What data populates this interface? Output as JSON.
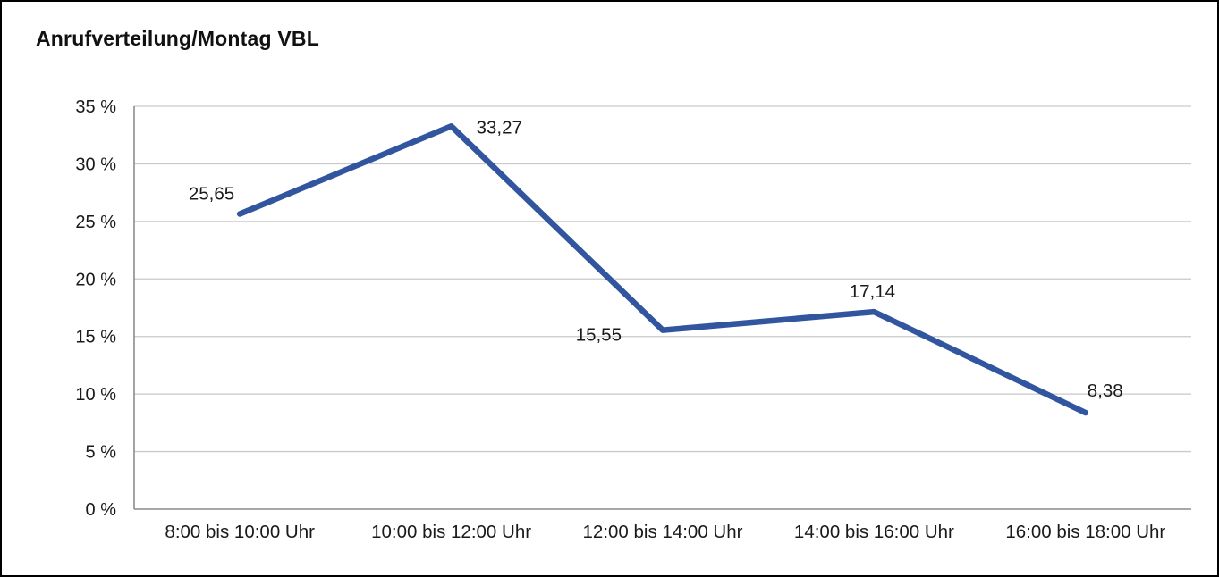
{
  "page": {
    "title": "Anrufverteilung/Montag VBL"
  },
  "chart_data": {
    "type": "line",
    "title": "Anrufverteilung/Montag VBL",
    "categories": [
      "8:00 bis 10:00 Uhr",
      "10:00 bis 12:00 Uhr",
      "12:00 bis 14:00 Uhr",
      "14:00 bis 16:00 Uhr",
      "16:00 bis 18:00 Uhr"
    ],
    "values": [
      25.65,
      33.27,
      15.55,
      17.14,
      8.38
    ],
    "value_labels": [
      "25,65",
      "33,27",
      "15,55",
      "17,14",
      "8,38"
    ],
    "xlabel": "",
    "ylabel": "",
    "ylim": [
      0,
      35
    ],
    "ytick_step": 5,
    "ytick_suffix": " %",
    "grid": true,
    "legend_position": "none",
    "line_color": "#31559e",
    "grid_color": "#c9c9c9",
    "axis_color": "#8c8c8c",
    "text_color": "#1a1a1a"
  }
}
